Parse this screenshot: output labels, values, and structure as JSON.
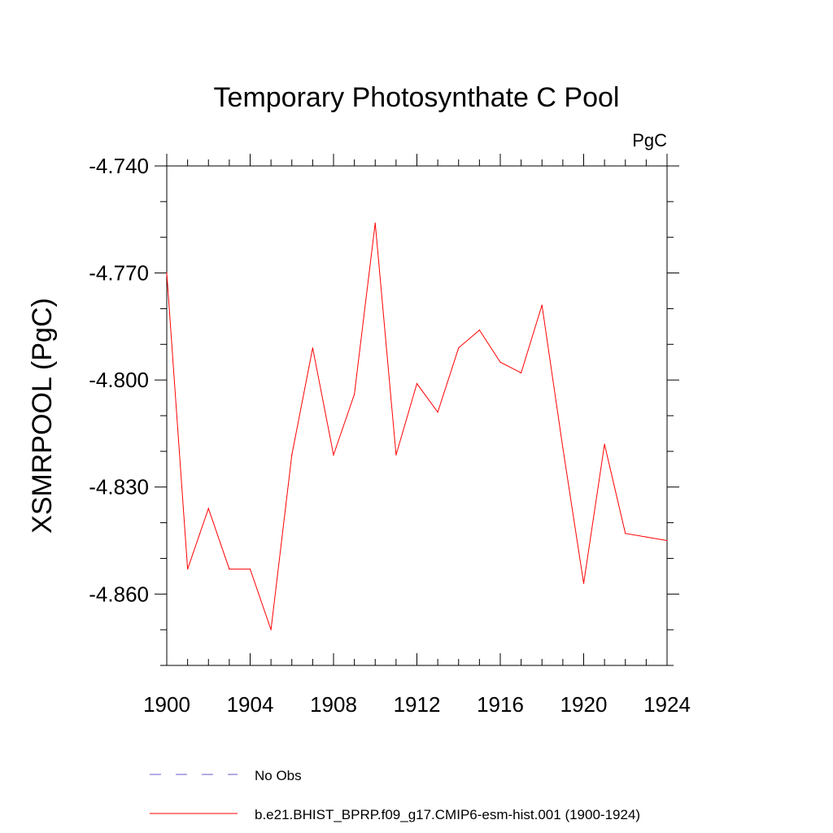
{
  "chart_data": {
    "type": "line",
    "title": "Temporary Photosynthate C Pool",
    "units": "PgC",
    "xlabel": "",
    "ylabel": "XSMRPOOL  (PgC)",
    "xlim": [
      1900,
      1924
    ],
    "ylim": [
      -4.88,
      -4.74
    ],
    "x_ticks": [
      1900,
      1904,
      1908,
      1912,
      1916,
      1920,
      1924
    ],
    "y_ticks": [
      -4.74,
      -4.77,
      -4.8,
      -4.83,
      -4.86
    ],
    "y_tick_labels": [
      "-4.740",
      "-4.770",
      "-4.800",
      "-4.830",
      "-4.860"
    ],
    "x_tick_labels": [
      "1900",
      "1904",
      "1908",
      "1912",
      "1916",
      "1920",
      "1924"
    ],
    "series": [
      {
        "name": "b.e21.BHIST_BPRP.f09_g17.CMIP6-esm-hist.001 (1900-1924)",
        "color": "#ff0000",
        "dash": "solid",
        "x": [
          1900,
          1901,
          1902,
          1903,
          1904,
          1905,
          1906,
          1907,
          1908,
          1909,
          1910,
          1911,
          1912,
          1913,
          1914,
          1915,
          1916,
          1917,
          1918,
          1919,
          1920,
          1921,
          1922,
          1923,
          1924
        ],
        "values": [
          -4.77,
          -4.853,
          -4.836,
          -4.853,
          -4.853,
          -4.87,
          -4.821,
          -4.791,
          -4.821,
          -4.804,
          -4.756,
          -4.821,
          -4.801,
          -4.809,
          -4.791,
          -4.786,
          -4.795,
          -4.798,
          -4.779,
          -4.819,
          -4.857,
          -4.818,
          -4.843,
          -4.844,
          -4.845
        ]
      }
    ],
    "legend": [
      {
        "label": "No Obs",
        "color": "#6a5acd",
        "dash": "dashed"
      },
      {
        "label": "b.e21.BHIST_BPRP.f09_g17.CMIP6-esm-hist.001 (1900-1924)",
        "color": "#ff0000",
        "dash": "solid"
      }
    ]
  }
}
